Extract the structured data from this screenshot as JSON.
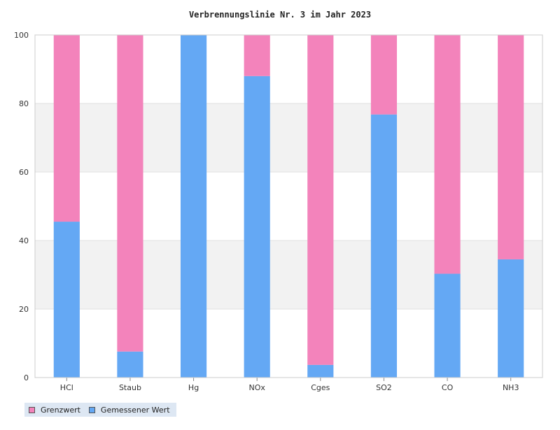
{
  "chart_data": {
    "type": "bar",
    "stacked": true,
    "title": "Verbrennungslinie Nr. 3 im Jahr 2023",
    "categories": [
      "HCl",
      "Staub",
      "Hg",
      "NOx",
      "Cges",
      "SO2",
      "CO",
      "NH3"
    ],
    "series": [
      {
        "name": "Gemessener Wert",
        "color": "#64a8f4",
        "values": [
          45.5,
          7.6,
          100,
          88,
          3.7,
          76.8,
          30.3,
          34.5
        ]
      },
      {
        "name": "Grenzwert",
        "color": "#f383bb",
        "values": [
          54.5,
          92.4,
          0,
          12,
          96.3,
          23.2,
          69.7,
          65.5
        ]
      }
    ],
    "ylim": [
      0,
      100
    ],
    "yticks": [
      "0",
      "20",
      "40",
      "60",
      "80",
      "100"
    ],
    "grid": true,
    "band_color": "#f2f2f2",
    "legend_position": "bottom-left",
    "legend": [
      {
        "label": "Grenzwert",
        "color": "#f383bb"
      },
      {
        "label": "Gemessener Wert",
        "color": "#64a8f4"
      }
    ]
  }
}
